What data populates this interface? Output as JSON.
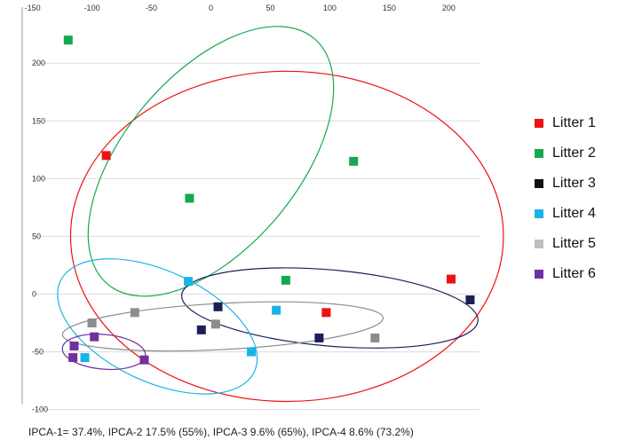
{
  "chart_data": {
    "type": "scatter",
    "title": "",
    "xlabel": "",
    "ylabel": "",
    "xlim": [
      -150,
      225
    ],
    "ylim": [
      -100,
      240
    ],
    "x_ticks": [
      "-150",
      "-100",
      "-50",
      "0",
      "50",
      "100",
      "150",
      "200"
    ],
    "y_ticks": [
      "200",
      "150",
      "100",
      "50",
      "0",
      "-50",
      "-100"
    ],
    "grid": "horizontal",
    "legend_position": "right",
    "series": [
      {
        "name": "Litter 1",
        "color": "#ee1111",
        "marker": "square",
        "points": [
          [
            -88,
            120
          ],
          [
            97,
            -16
          ],
          [
            202,
            13
          ]
        ],
        "ellipse": {
          "cx": 64,
          "cy": 50,
          "rx": 182,
          "ry": 143,
          "angle": 0
        }
      },
      {
        "name": "Litter 2",
        "color": "#16a850",
        "marker": "square",
        "points": [
          [
            -120,
            220
          ],
          [
            -18,
            83
          ],
          [
            120,
            115
          ],
          [
            63,
            12
          ]
        ],
        "ellipse": {
          "cx": 0,
          "cy": 115,
          "rx": 135,
          "ry": 75,
          "angle": -50
        }
      },
      {
        "name": "Litter 3",
        "color": "#1a1f55",
        "marker": "square",
        "points": [
          [
            6,
            -11
          ],
          [
            -8,
            -31
          ],
          [
            91,
            -38
          ],
          [
            218,
            -5
          ]
        ],
        "ellipse": {
          "cx": 100,
          "cy": -12,
          "rx": 125,
          "ry": 33,
          "angle": 5
        }
      },
      {
        "name": "Litter 4",
        "color": "#19b4e6",
        "marker": "square",
        "points": [
          [
            -19,
            11
          ],
          [
            55,
            -14
          ],
          [
            34,
            -50
          ],
          [
            -106,
            -55
          ]
        ],
        "ellipse": {
          "cx": -45,
          "cy": -28,
          "rx": 90,
          "ry": 48,
          "angle": 25
        }
      },
      {
        "name": "Litter 5",
        "color": "#8c8c8c",
        "marker": "square",
        "points": [
          [
            -100,
            -25
          ],
          [
            -64,
            -16
          ],
          [
            4,
            -26
          ],
          [
            138,
            -38
          ]
        ],
        "ellipse": {
          "cx": 10,
          "cy": -28,
          "rx": 135,
          "ry": 20,
          "angle": -3
        }
      },
      {
        "name": "Litter 6",
        "color": "#7030a0",
        "marker": "square",
        "points": [
          [
            -115,
            -45
          ],
          [
            -116,
            -55
          ],
          [
            -98,
            -37
          ],
          [
            -56,
            -57
          ]
        ],
        "ellipse": {
          "cx": -90,
          "cy": -50,
          "rx": 35,
          "ry": 15,
          "angle": 5
        }
      }
    ],
    "legend": [
      {
        "label": "Litter 1",
        "color": "#ee1111"
      },
      {
        "label": "Litter 2",
        "color": "#16a850"
      },
      {
        "label": "Litter 3",
        "color": "#111111"
      },
      {
        "label": "Litter 4",
        "color": "#19b4e6"
      },
      {
        "label": "Litter 5",
        "color": "#bfbfbf"
      },
      {
        "label": "Litter 6",
        "color": "#7030a0"
      }
    ],
    "caption": "IPCA-1= 37.4%, IPCA-2 17.5% (55%), IPCA-3 9.6% (65%), IPCA-4 8.6% (73.2%)"
  }
}
